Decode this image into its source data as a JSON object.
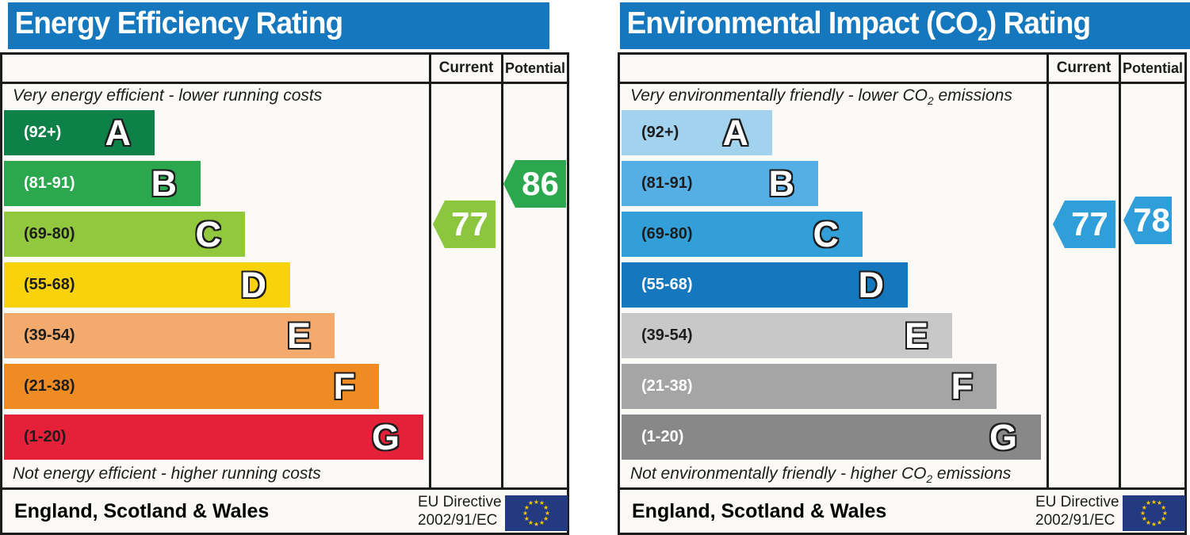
{
  "colors": {
    "header": "#1577bd",
    "border": "#1c1c1c",
    "table_bg": "#fbfaf6",
    "flag_bg": "#233a81",
    "flag_star": "#f5c400"
  },
  "panels": [
    {
      "id": "energy-efficiency",
      "title_pre": "Energy Efficiency Rating",
      "title_sub": "",
      "title_post": "",
      "col_current": "Current",
      "col_potential": "Potential",
      "note_top_pre": "Very energy efficient - lower running costs",
      "note_top_sub": "",
      "note_top_post": "",
      "note_bottom_pre": "Not energy efficient - higher running costs",
      "note_bottom_sub": "",
      "note_bottom_post": "",
      "bands": [
        {
          "range": "(92+)",
          "letter": "A",
          "color": "#0e8148",
          "range_color": "#ffffff"
        },
        {
          "range": "(81-91)",
          "letter": "B",
          "color": "#2ba84e",
          "range_color": "#ffffff"
        },
        {
          "range": "(69-80)",
          "letter": "C",
          "color": "#92c83e",
          "range_color": "#1d1d1d"
        },
        {
          "range": "(55-68)",
          "letter": "D",
          "color": "#f8d30c",
          "range_color": "#1d1d1d"
        },
        {
          "range": "(39-54)",
          "letter": "E",
          "color": "#f4aa6d",
          "range_color": "#1d1d1d"
        },
        {
          "range": "(21-38)",
          "letter": "F",
          "color": "#ee8b23",
          "range_color": "#1d1d1d"
        },
        {
          "range": "(1-20)",
          "letter": "G",
          "color": "#e42138",
          "range_color": "#1d1d1d"
        }
      ],
      "current": {
        "value": "77",
        "color": "#8bc63e"
      },
      "potential": {
        "value": "86",
        "color": "#2ba84e"
      },
      "footer": {
        "region": "England, Scotland & Wales",
        "directive_line1": "EU Directive",
        "directive_line2": "2002/91/EC"
      }
    },
    {
      "id": "environmental-impact-co2",
      "title_pre": "Environmental Impact (CO",
      "title_sub": "2",
      "title_post": ") Rating",
      "col_current": "Current",
      "col_potential": "Potential",
      "note_top_pre": "Very environmentally friendly - lower CO",
      "note_top_sub": "2",
      "note_top_post": " emissions",
      "note_bottom_pre": "Not environmentally friendly - higher CO",
      "note_bottom_sub": "2",
      "note_bottom_post": " emissions",
      "bands": [
        {
          "range": "(92+)",
          "letter": "A",
          "color": "#a2d2ed",
          "range_color": "#1d1d1d"
        },
        {
          "range": "(81-91)",
          "letter": "B",
          "color": "#55afe4",
          "range_color": "#1d1d1d"
        },
        {
          "range": "(69-80)",
          "letter": "C",
          "color": "#339fd9",
          "range_color": "#1d1d1d"
        },
        {
          "range": "(55-68)",
          "letter": "D",
          "color": "#1577bd",
          "range_color": "#ffffff"
        },
        {
          "range": "(39-54)",
          "letter": "E",
          "color": "#c8c8c8",
          "range_color": "#1d1d1d"
        },
        {
          "range": "(21-38)",
          "letter": "F",
          "color": "#a5a5a5",
          "range_color": "#ffffff"
        },
        {
          "range": "(1-20)",
          "letter": "G",
          "color": "#888888",
          "range_color": "#ffffff"
        }
      ],
      "current": {
        "value": "77",
        "color": "#2f9ed9"
      },
      "potential": {
        "value": "78",
        "color": "#2f9ed9"
      },
      "footer": {
        "region": "England, Scotland & Wales",
        "directive_line1": "EU Directive",
        "directive_line2": "2002/91/EC"
      }
    }
  ],
  "chart_data": [
    {
      "type": "bar",
      "title": "Energy Efficiency Rating",
      "categories": [
        "A (92+)",
        "B (81-91)",
        "C (69-80)",
        "D (55-68)",
        "E (39-54)",
        "F (21-38)",
        "G (1-20)"
      ],
      "band_colors": [
        "#0e8148",
        "#2ba84e",
        "#92c83e",
        "#f8d30c",
        "#f4aa6d",
        "#ee8b23",
        "#e42138"
      ],
      "current": 77,
      "current_band": "C",
      "potential": 86,
      "potential_band": "B",
      "footnote_top": "Very energy efficient - lower running costs",
      "footnote_bottom": "Not energy efficient - higher running costs",
      "region": "England, Scotland & Wales",
      "directive": "EU Directive 2002/91/EC"
    },
    {
      "type": "bar",
      "title": "Environmental Impact (CO2) Rating",
      "categories": [
        "A (92+)",
        "B (81-91)",
        "C (69-80)",
        "D (55-68)",
        "E (39-54)",
        "F (21-38)",
        "G (1-20)"
      ],
      "band_colors": [
        "#a2d2ed",
        "#55afe4",
        "#339fd9",
        "#1577bd",
        "#c8c8c8",
        "#a5a5a5",
        "#888888"
      ],
      "current": 77,
      "current_band": "C",
      "potential": 78,
      "potential_band": "C",
      "footnote_top": "Very environmentally friendly - lower CO2 emissions",
      "footnote_bottom": "Not environmentally friendly - higher CO2 emissions",
      "region": "England, Scotland & Wales",
      "directive": "EU Directive 2002/91/EC"
    }
  ]
}
